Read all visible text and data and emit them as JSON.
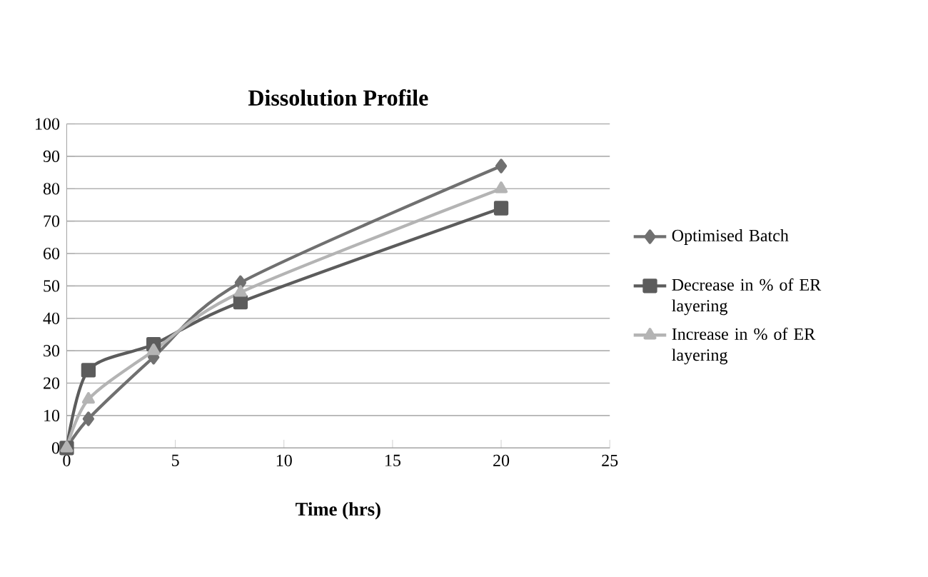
{
  "chart_data": {
    "type": "line",
    "title": "Dissolution Profile",
    "xlabel": "Time (hrs)",
    "x": [
      0,
      1,
      4,
      8,
      20
    ],
    "series": [
      {
        "name": "Optimised Batch",
        "color": "#707070",
        "marker": "diamond",
        "values": [
          0,
          9,
          28,
          51,
          87
        ]
      },
      {
        "name": "Decrease in % of ER layering",
        "color": "#5c5c5c",
        "marker": "square",
        "values": [
          0,
          24,
          32,
          45,
          74
        ]
      },
      {
        "name": "Increase in % of ER layering",
        "color": "#b4b4b4",
        "marker": "triangle",
        "values": [
          0,
          15,
          30,
          48,
          80
        ]
      }
    ],
    "xlim": [
      0,
      25
    ],
    "xticks": [
      0,
      5,
      10,
      15,
      20,
      25
    ],
    "ylim": [
      0,
      100
    ],
    "yticks": [
      0,
      10,
      20,
      30,
      40,
      50,
      60,
      70,
      80,
      90,
      100
    ],
    "grid": "y",
    "legend": "right"
  }
}
